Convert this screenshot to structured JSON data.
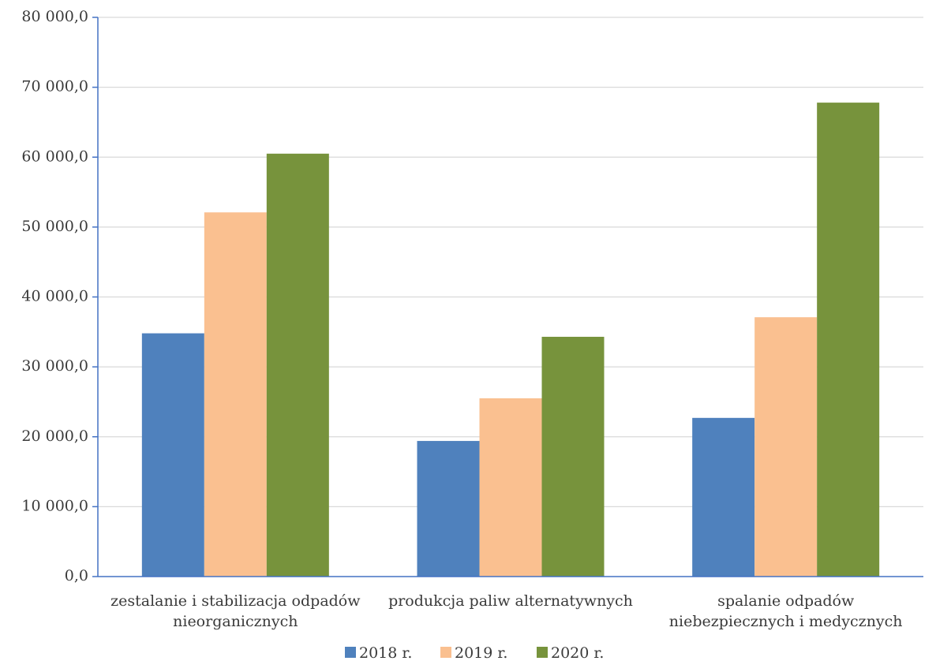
{
  "chart_data": {
    "type": "bar",
    "categories": [
      [
        "zestalanie i stabilizacja odpadów",
        "nieorganicznych"
      ],
      [
        "produkcja paliw alternatywnych"
      ],
      [
        "spalanie odpadów",
        "niebezpiecznych i medycznych"
      ]
    ],
    "series": [
      {
        "name": "2018 r.",
        "color": "#4f81bd",
        "values": [
          34800,
          19400,
          22700
        ]
      },
      {
        "name": "2019 r.",
        "color": "#fac090",
        "values": [
          52100,
          25500,
          37100
        ]
      },
      {
        "name": "2020 r.",
        "color": "#77933c",
        "values": [
          60500,
          34300,
          67800
        ]
      }
    ],
    "ylim": [
      0,
      80000
    ],
    "y_ticks": [
      "0,0",
      "10 000,0",
      "20 000,0",
      "30 000,0",
      "40 000,0",
      "50 000,0",
      "60 000,0",
      "70 000,0",
      "80 000,0"
    ],
    "grid": true,
    "legend_position": "bottom-center",
    "title": "",
    "xlabel": "",
    "ylabel": ""
  }
}
